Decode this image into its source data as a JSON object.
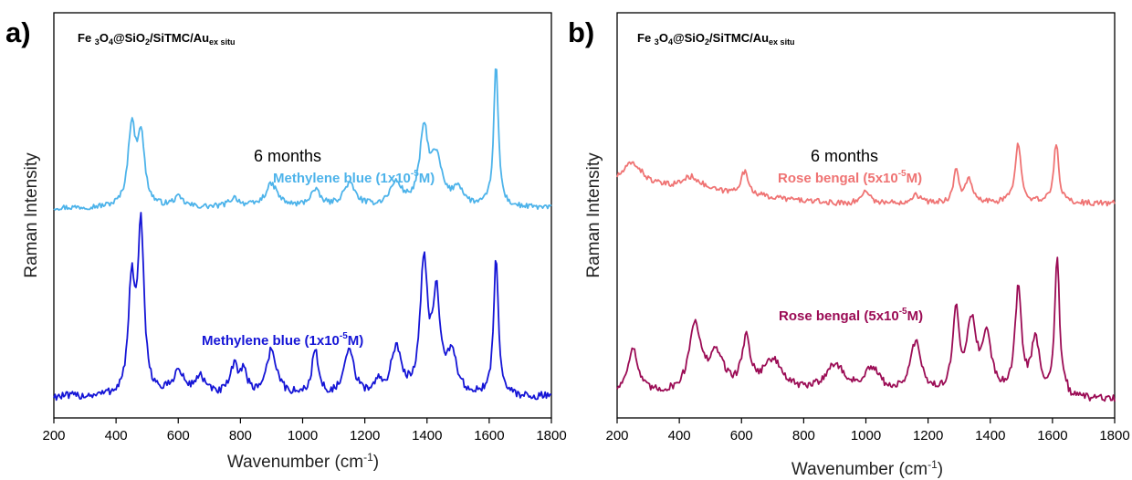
{
  "chart_data": [
    {
      "panel": "a)",
      "type": "line",
      "sample_label": {
        "base": "Fe",
        "parts": [
          [
            "3",
            "sub"
          ],
          [
            "O",
            ""
          ],
          [
            "4",
            "sub"
          ],
          [
            "@SiO",
            ""
          ],
          [
            "2",
            "sub"
          ],
          [
            "/SiTMC/Au",
            ""
          ],
          [
            "ex situ",
            "sub"
          ]
        ]
      },
      "xlabel": "Wavenumber (cm",
      "xlabel_sup": "-1",
      "xlabel_end": ")",
      "ylabel": "Raman Intensity",
      "xlim": [
        200,
        1800
      ],
      "xticks": [
        200,
        400,
        600,
        800,
        1000,
        1200,
        1400,
        1600,
        1800
      ],
      "y_ticks_shown": false,
      "annotation": "6 months",
      "series": [
        {
          "label_text": "Methylene blue (1x10",
          "label_sup": "-5",
          "label_end": "M)",
          "color": "#4db3ea",
          "baseline": 0.02,
          "peaks": [
            [
              450,
              0.34,
              14
            ],
            [
              480,
              0.3,
              14
            ],
            [
              600,
              0.04,
              20
            ],
            [
              780,
              0.04,
              20
            ],
            [
              900,
              0.1,
              24
            ],
            [
              1040,
              0.07,
              20
            ],
            [
              1150,
              0.1,
              24
            ],
            [
              1300,
              0.1,
              24
            ],
            [
              1390,
              0.32,
              16
            ],
            [
              1430,
              0.2,
              22
            ],
            [
              1500,
              0.08,
              20
            ],
            [
              1622,
              0.62,
              9
            ]
          ],
          "y_offset": 0.6,
          "noise": 0.012
        },
        {
          "label_text": "Methylene blue (1x10",
          "label_sup": "-5",
          "label_end": "M)",
          "color": "#1515d6",
          "baseline": 0.02,
          "peaks": [
            [
              450,
              0.48,
              12
            ],
            [
              480,
              0.72,
              12
            ],
            [
              600,
              0.1,
              22
            ],
            [
              670,
              0.08,
              20
            ],
            [
              780,
              0.12,
              16
            ],
            [
              810,
              0.1,
              12
            ],
            [
              900,
              0.2,
              20
            ],
            [
              1040,
              0.2,
              12
            ],
            [
              1150,
              0.2,
              18
            ],
            [
              1240,
              0.05,
              12
            ],
            [
              1300,
              0.2,
              20
            ],
            [
              1390,
              0.58,
              14
            ],
            [
              1430,
              0.42,
              14
            ],
            [
              1480,
              0.18,
              18
            ],
            [
              1622,
              0.62,
              9
            ]
          ],
          "y_offset": 0.0,
          "noise": 0.018
        }
      ]
    },
    {
      "panel": "b)",
      "type": "line",
      "sample_label": {
        "base": "Fe",
        "parts": [
          [
            "3",
            "sub"
          ],
          [
            "O",
            ""
          ],
          [
            "4",
            "sub"
          ],
          [
            "@SiO",
            ""
          ],
          [
            "2",
            "sub"
          ],
          [
            "/SiTMC/Au",
            ""
          ],
          [
            "ex situ",
            "sub"
          ]
        ]
      },
      "xlabel": "Wavenumber (cm",
      "xlabel_sup": "-1",
      "xlabel_end": ")",
      "ylabel": "Raman Intensity",
      "xlim": [
        200,
        1800
      ],
      "xticks": [
        200,
        400,
        600,
        800,
        1000,
        1200,
        1400,
        1600,
        1800
      ],
      "y_ticks_shown": false,
      "annotation": "6 months",
      "series": [
        {
          "label_text": "Rose bengal (5x10",
          "label_sup": "-5",
          "label_end": "M)",
          "color": "#ef7373",
          "baseline": 0.02,
          "peaks": [
            [
              250,
              0.1,
              40
            ],
            [
              440,
              0.06,
              40
            ],
            [
              610,
              0.1,
              16
            ],
            [
              1000,
              0.06,
              14
            ],
            [
              1160,
              0.04,
              16
            ],
            [
              1290,
              0.14,
              10
            ],
            [
              1330,
              0.1,
              14
            ],
            [
              1490,
              0.26,
              12
            ],
            [
              1612,
              0.26,
              10
            ]
          ],
          "y_offset": 0.6,
          "noise": 0.012,
          "decay": 0.08
        },
        {
          "label_text": "Rose bengal (5x10",
          "label_sup": "-5",
          "label_end": "M)",
          "color": "#9b0c55",
          "baseline": 0.02,
          "peaks": [
            [
              250,
              0.2,
              20
            ],
            [
              450,
              0.3,
              22
            ],
            [
              520,
              0.16,
              30
            ],
            [
              615,
              0.22,
              16
            ],
            [
              700,
              0.14,
              40
            ],
            [
              900,
              0.12,
              40
            ],
            [
              1020,
              0.1,
              30
            ],
            [
              1160,
              0.22,
              20
            ],
            [
              1290,
              0.34,
              12
            ],
            [
              1340,
              0.3,
              20
            ],
            [
              1390,
              0.24,
              16
            ],
            [
              1490,
              0.46,
              12
            ],
            [
              1545,
              0.24,
              14
            ],
            [
              1615,
              0.6,
              9
            ]
          ],
          "y_offset": 0.0,
          "noise": 0.016,
          "decay": 0.0
        }
      ]
    }
  ]
}
